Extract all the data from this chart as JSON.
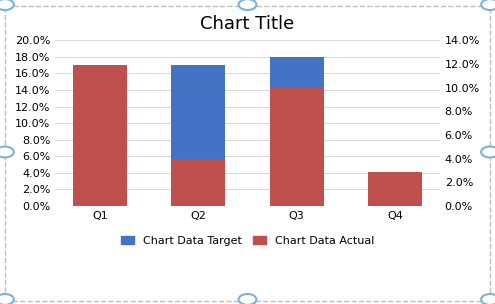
{
  "title": "Chart Title",
  "categories": [
    "Q1",
    "Q2",
    "Q3",
    "Q4"
  ],
  "target_values": [
    0.03,
    0.17,
    0.18,
    0.04
  ],
  "actual_values": [
    0.17,
    0.057,
    0.143,
    0.041
  ],
  "target_color": "#4472C4",
  "actual_color": "#C0504D",
  "left_ylim": [
    0,
    0.2
  ],
  "right_ylim": [
    0,
    0.14
  ],
  "left_yticks": [
    0.0,
    0.02,
    0.04,
    0.06,
    0.08,
    0.1,
    0.12,
    0.14,
    0.16,
    0.18,
    0.2
  ],
  "right_yticks": [
    0.0,
    0.02,
    0.04,
    0.06,
    0.08,
    0.1,
    0.12,
    0.14
  ],
  "legend_labels": [
    "Chart Data Target",
    "Chart Data Actual"
  ],
  "bar_width": 0.55,
  "figsize": [
    4.95,
    3.04
  ],
  "dpi": 100,
  "bg_color": "#FFFFFF",
  "grid_color": "#D9D9D9",
  "title_fontsize": 13,
  "axis_fontsize": 8,
  "legend_fontsize": 8,
  "handle_color": "#7EB1D8",
  "border_color": "#BFBFBF"
}
